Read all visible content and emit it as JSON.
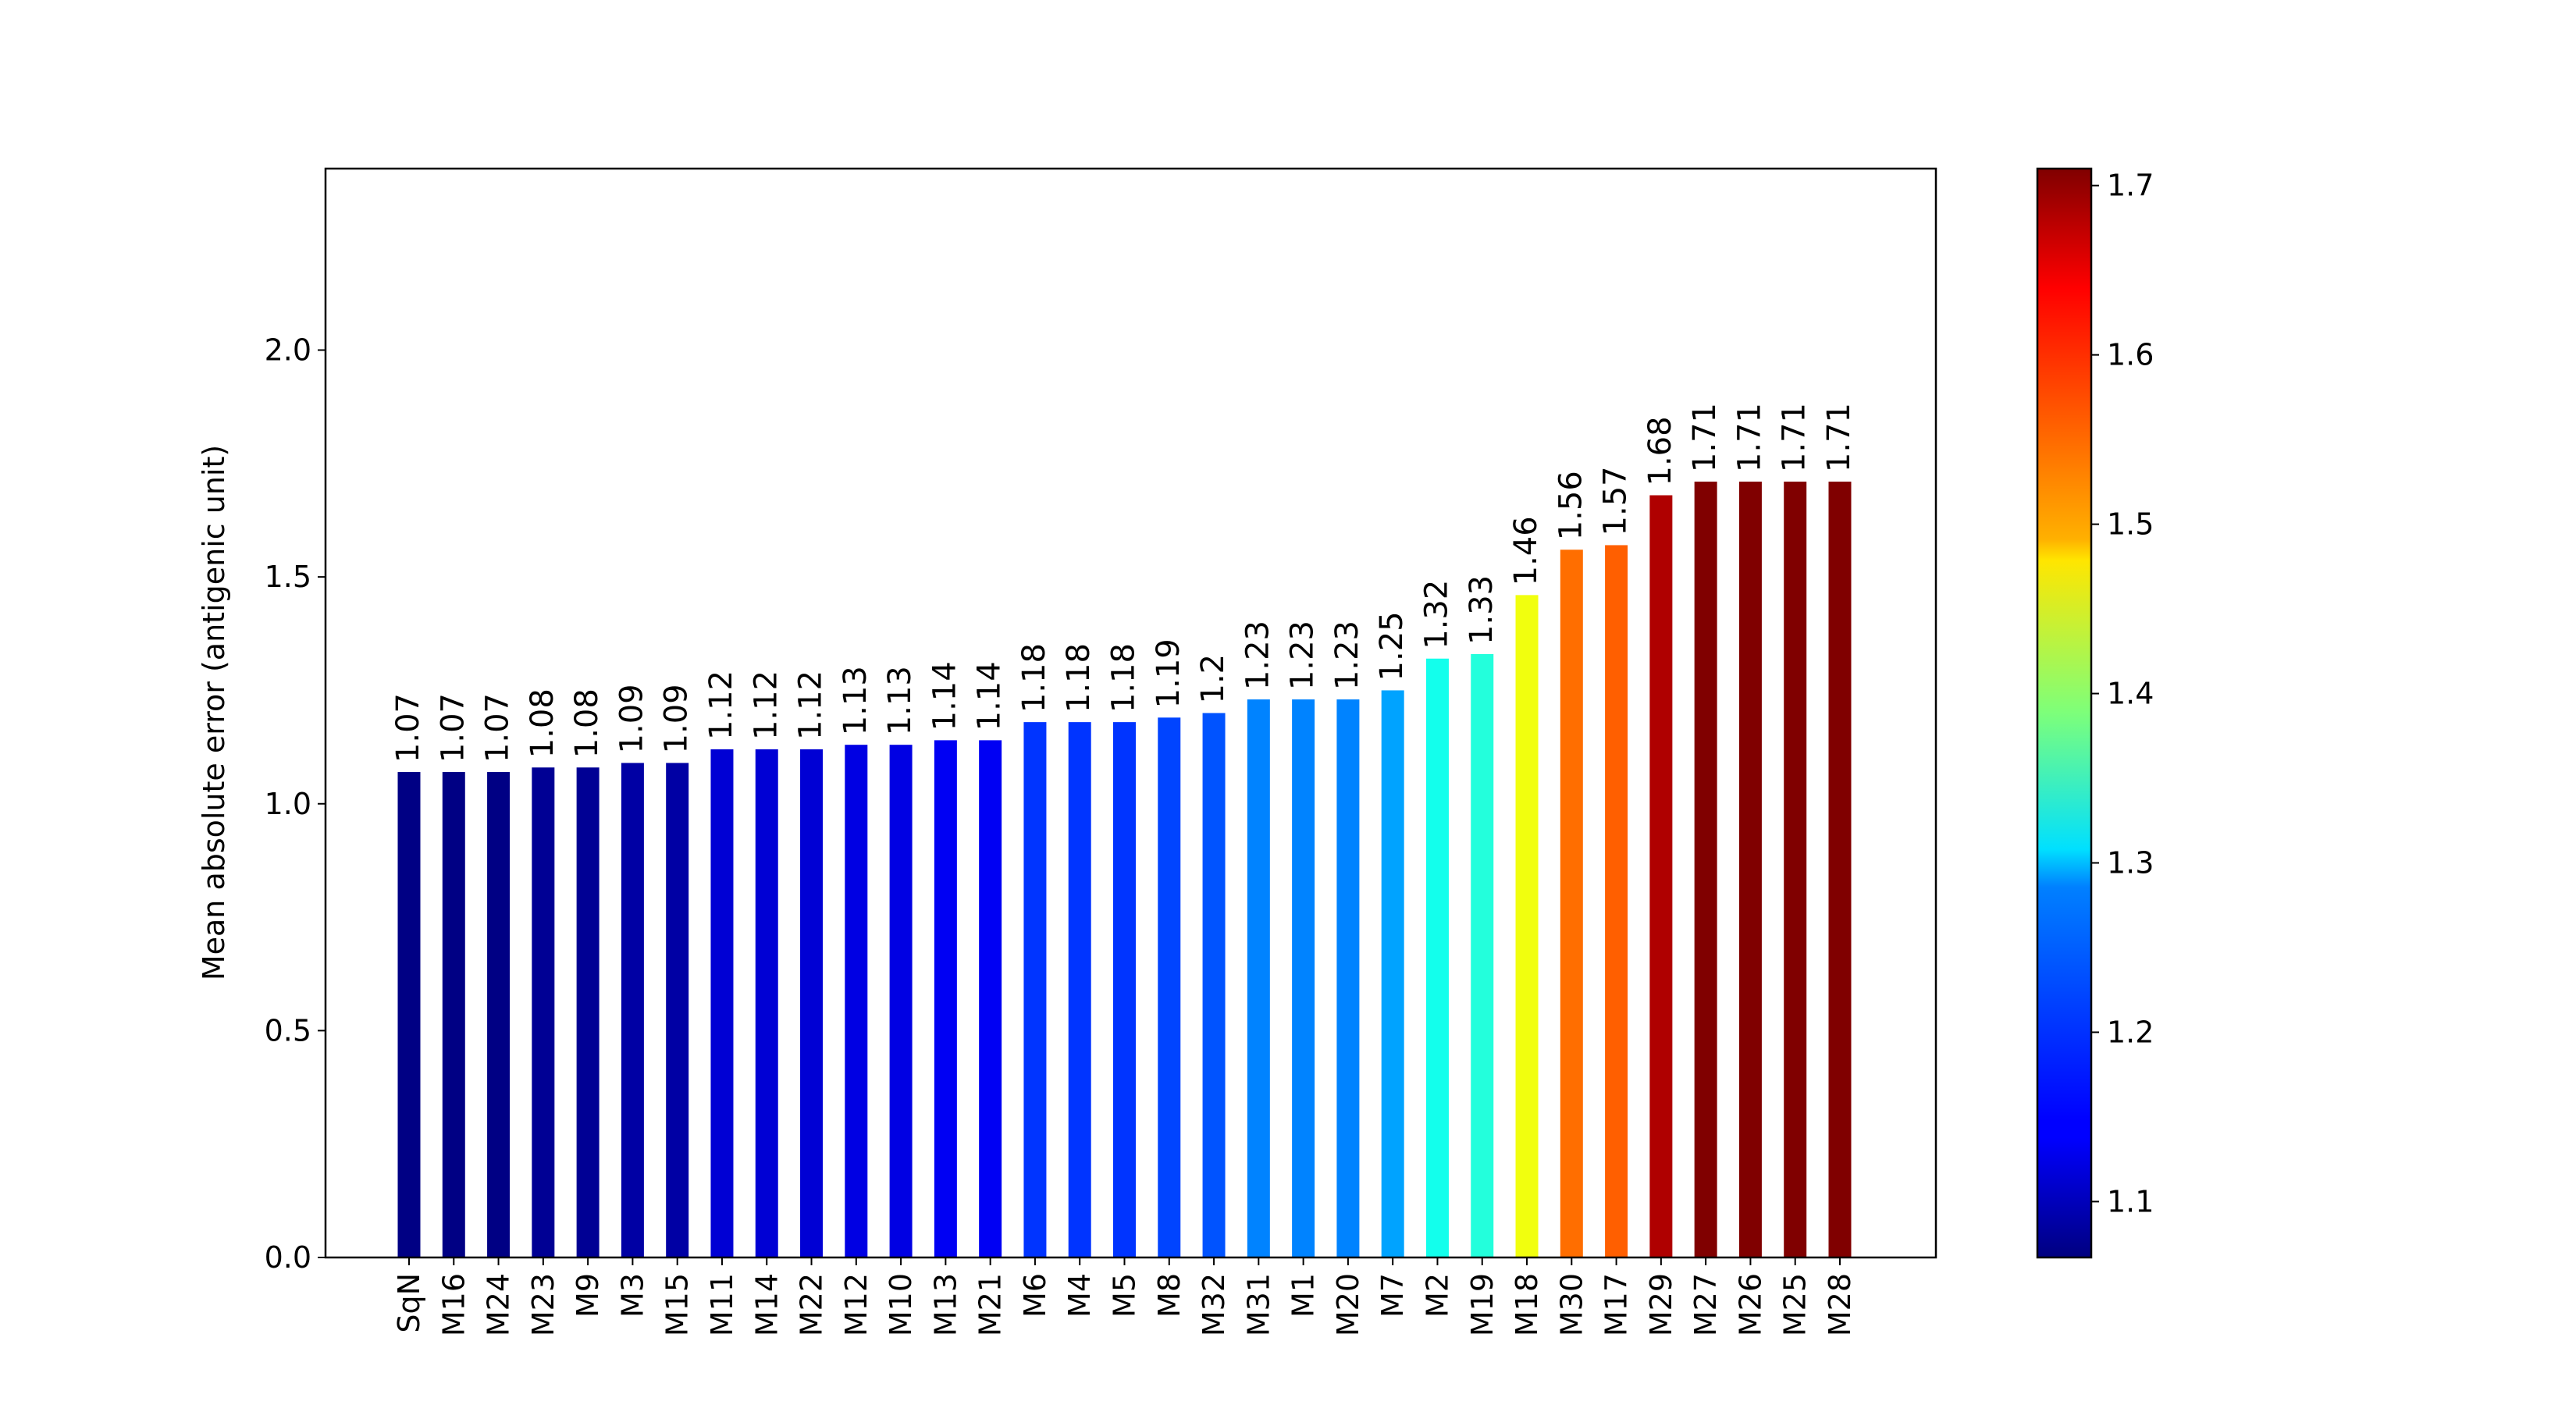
{
  "chart_data": {
    "type": "bar",
    "title": "",
    "xlabel": "",
    "ylabel": "Mean absolute error (antigenic unit)",
    "ylim": [
      0,
      2.4
    ],
    "yticks": [
      "0.0",
      "0.5",
      "1.0",
      "1.5",
      "2.0"
    ],
    "grid": false,
    "categories": [
      "SqN",
      "M16",
      "M24",
      "M23",
      "M9",
      "M3",
      "M15",
      "M11",
      "M14",
      "M22",
      "M12",
      "M10",
      "M13",
      "M21",
      "M6",
      "M4",
      "M5",
      "M8",
      "M32",
      "M31",
      "M1",
      "M20",
      "M7",
      "M2",
      "M19",
      "M18",
      "M30",
      "M17",
      "M29",
      "M27",
      "M26",
      "M25",
      "M28"
    ],
    "values": [
      1.07,
      1.07,
      1.07,
      1.08,
      1.08,
      1.09,
      1.09,
      1.12,
      1.12,
      1.12,
      1.13,
      1.13,
      1.14,
      1.14,
      1.18,
      1.18,
      1.18,
      1.19,
      1.2,
      1.23,
      1.23,
      1.23,
      1.25,
      1.32,
      1.33,
      1.46,
      1.56,
      1.57,
      1.68,
      1.71,
      1.71,
      1.71,
      1.71
    ],
    "value_labels": [
      "1.07",
      "1.07",
      "1.07",
      "1.08",
      "1.08",
      "1.09",
      "1.09",
      "1.12",
      "1.12",
      "1.12",
      "1.13",
      "1.13",
      "1.14",
      "1.14",
      "1.18",
      "1.18",
      "1.18",
      "1.19",
      "1.2",
      "1.23",
      "1.23",
      "1.23",
      "1.25",
      "1.32",
      "1.33",
      "1.46",
      "1.56",
      "1.57",
      "1.68",
      "1.71",
      "1.71",
      "1.71",
      "1.71"
    ],
    "colormap": "jet",
    "colorbar": {
      "vmin": 1.067,
      "vmax": 1.71,
      "ticks": [
        1.1,
        1.2,
        1.3,
        1.4,
        1.5,
        1.6,
        1.7
      ],
      "tick_labels": [
        "1.1",
        "1.2",
        "1.3",
        "1.4",
        "1.5",
        "1.6",
        "1.7"
      ]
    }
  }
}
